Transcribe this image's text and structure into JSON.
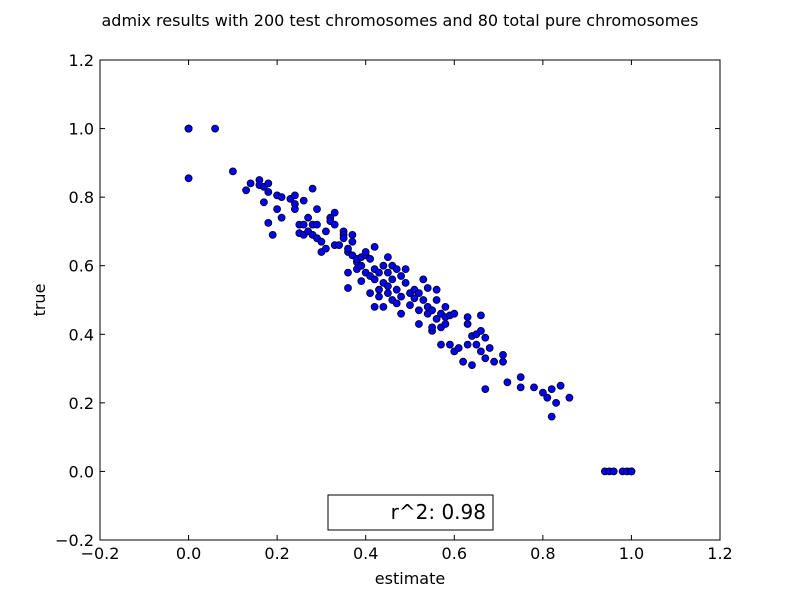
{
  "chart_data": {
    "type": "scatter",
    "title": "admix results with 200 test chromosomes and 80 total pure chromosomes",
    "xlabel": "estimate",
    "ylabel": "true",
    "xlim": [
      -0.2,
      1.2
    ],
    "ylim": [
      -0.2,
      1.2
    ],
    "xticks": [
      "−0.2",
      "0.0",
      "0.2",
      "0.4",
      "0.6",
      "0.8",
      "1.0",
      "1.2"
    ],
    "yticks": [
      "−0.2",
      "0.0",
      "0.2",
      "0.4",
      "0.6",
      "0.8",
      "1.0",
      "1.2"
    ],
    "grid": false,
    "marker_color": "#0000ff",
    "annotation": "r^2: 0.98",
    "points": [
      [
        0.0,
        1.0
      ],
      [
        0.0,
        1.0
      ],
      [
        0.0,
        1.0
      ],
      [
        0.0,
        1.0
      ],
      [
        0.06,
        1.0
      ],
      [
        0.0,
        0.855
      ],
      [
        0.1,
        0.875
      ],
      [
        0.13,
        0.82
      ],
      [
        0.14,
        0.84
      ],
      [
        0.16,
        0.85
      ],
      [
        0.16,
        0.835
      ],
      [
        0.17,
        0.83
      ],
      [
        0.18,
        0.84
      ],
      [
        0.18,
        0.815
      ],
      [
        0.17,
        0.785
      ],
      [
        0.18,
        0.725
      ],
      [
        0.19,
        0.69
      ],
      [
        0.2,
        0.805
      ],
      [
        0.2,
        0.765
      ],
      [
        0.21,
        0.8
      ],
      [
        0.21,
        0.74
      ],
      [
        0.23,
        0.795
      ],
      [
        0.24,
        0.78
      ],
      [
        0.24,
        0.805
      ],
      [
        0.24,
        0.765
      ],
      [
        0.25,
        0.72
      ],
      [
        0.25,
        0.695
      ],
      [
        0.26,
        0.72
      ],
      [
        0.26,
        0.79
      ],
      [
        0.26,
        0.69
      ],
      [
        0.27,
        0.7
      ],
      [
        0.27,
        0.74
      ],
      [
        0.28,
        0.72
      ],
      [
        0.28,
        0.825
      ],
      [
        0.28,
        0.69
      ],
      [
        0.29,
        0.765
      ],
      [
        0.29,
        0.72
      ],
      [
        0.29,
        0.68
      ],
      [
        0.3,
        0.64
      ],
      [
        0.3,
        0.67
      ],
      [
        0.31,
        0.7
      ],
      [
        0.31,
        0.65
      ],
      [
        0.32,
        0.74
      ],
      [
        0.32,
        0.73
      ],
      [
        0.33,
        0.755
      ],
      [
        0.33,
        0.72
      ],
      [
        0.33,
        0.66
      ],
      [
        0.34,
        0.66
      ],
      [
        0.35,
        0.7
      ],
      [
        0.35,
        0.69
      ],
      [
        0.35,
        0.68
      ],
      [
        0.36,
        0.64
      ],
      [
        0.36,
        0.65
      ],
      [
        0.36,
        0.535
      ],
      [
        0.36,
        0.58
      ],
      [
        0.37,
        0.69
      ],
      [
        0.37,
        0.67
      ],
      [
        0.37,
        0.63
      ],
      [
        0.38,
        0.61
      ],
      [
        0.38,
        0.62
      ],
      [
        0.38,
        0.59
      ],
      [
        0.39,
        0.6
      ],
      [
        0.39,
        0.625
      ],
      [
        0.39,
        0.555
      ],
      [
        0.4,
        0.63
      ],
      [
        0.4,
        0.58
      ],
      [
        0.4,
        0.64
      ],
      [
        0.41,
        0.62
      ],
      [
        0.41,
        0.57
      ],
      [
        0.41,
        0.52
      ],
      [
        0.42,
        0.655
      ],
      [
        0.42,
        0.59
      ],
      [
        0.42,
        0.56
      ],
      [
        0.42,
        0.48
      ],
      [
        0.43,
        0.53
      ],
      [
        0.43,
        0.51
      ],
      [
        0.43,
        0.58
      ],
      [
        0.44,
        0.55
      ],
      [
        0.44,
        0.6
      ],
      [
        0.44,
        0.48
      ],
      [
        0.45,
        0.52
      ],
      [
        0.45,
        0.54
      ],
      [
        0.45,
        0.625
      ],
      [
        0.45,
        0.58
      ],
      [
        0.46,
        0.6
      ],
      [
        0.46,
        0.5
      ],
      [
        0.46,
        0.56
      ],
      [
        0.47,
        0.59
      ],
      [
        0.47,
        0.53
      ],
      [
        0.47,
        0.49
      ],
      [
        0.48,
        0.57
      ],
      [
        0.48,
        0.51
      ],
      [
        0.48,
        0.46
      ],
      [
        0.49,
        0.59
      ],
      [
        0.49,
        0.55
      ],
      [
        0.5,
        0.52
      ],
      [
        0.5,
        0.485
      ],
      [
        0.51,
        0.505
      ],
      [
        0.51,
        0.53
      ],
      [
        0.52,
        0.52
      ],
      [
        0.52,
        0.47
      ],
      [
        0.52,
        0.43
      ],
      [
        0.53,
        0.56
      ],
      [
        0.53,
        0.5
      ],
      [
        0.54,
        0.48
      ],
      [
        0.54,
        0.46
      ],
      [
        0.54,
        0.535
      ],
      [
        0.55,
        0.41
      ],
      [
        0.55,
        0.42
      ],
      [
        0.55,
        0.47
      ],
      [
        0.56,
        0.53
      ],
      [
        0.56,
        0.5
      ],
      [
        0.56,
        0.445
      ],
      [
        0.57,
        0.46
      ],
      [
        0.57,
        0.42
      ],
      [
        0.57,
        0.37
      ],
      [
        0.58,
        0.45
      ],
      [
        0.58,
        0.43
      ],
      [
        0.58,
        0.48
      ],
      [
        0.59,
        0.37
      ],
      [
        0.59,
        0.455
      ],
      [
        0.6,
        0.35
      ],
      [
        0.6,
        0.46
      ],
      [
        0.61,
        0.36
      ],
      [
        0.62,
        0.32
      ],
      [
        0.63,
        0.45
      ],
      [
        0.63,
        0.43
      ],
      [
        0.63,
        0.37
      ],
      [
        0.64,
        0.31
      ],
      [
        0.64,
        0.395
      ],
      [
        0.65,
        0.4
      ],
      [
        0.65,
        0.37
      ],
      [
        0.66,
        0.455
      ],
      [
        0.66,
        0.41
      ],
      [
        0.66,
        0.35
      ],
      [
        0.67,
        0.39
      ],
      [
        0.67,
        0.33
      ],
      [
        0.67,
        0.24
      ],
      [
        0.68,
        0.36
      ],
      [
        0.69,
        0.32
      ],
      [
        0.71,
        0.32
      ],
      [
        0.71,
        0.34
      ],
      [
        0.72,
        0.26
      ],
      [
        0.75,
        0.245
      ],
      [
        0.75,
        0.275
      ],
      [
        0.78,
        0.245
      ],
      [
        0.8,
        0.23
      ],
      [
        0.81,
        0.215
      ],
      [
        0.82,
        0.24
      ],
      [
        0.82,
        0.16
      ],
      [
        0.83,
        0.2
      ],
      [
        0.84,
        0.25
      ],
      [
        0.86,
        0.215
      ],
      [
        0.94,
        0.0
      ],
      [
        0.95,
        0.0
      ],
      [
        0.96,
        0.0
      ],
      [
        0.98,
        0.0
      ],
      [
        0.99,
        0.0
      ],
      [
        1.0,
        0.0
      ],
      [
        1.0,
        0.0
      ],
      [
        1.0,
        0.0
      ]
    ]
  }
}
